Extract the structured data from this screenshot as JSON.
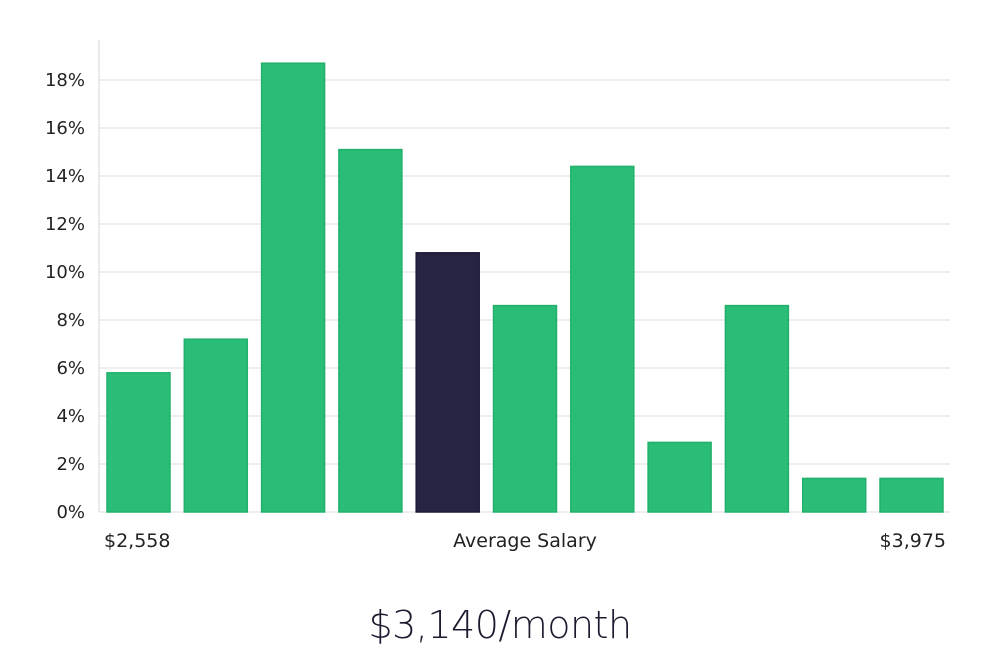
{
  "chart_data": {
    "type": "bar",
    "values": [
      5.8,
      7.2,
      18.7,
      15.1,
      10.8,
      8.6,
      14.4,
      2.9,
      8.6,
      1.4,
      1.4
    ],
    "highlight_index": 4,
    "ylim": [
      0,
      19
    ],
    "y_ticks": [
      0,
      2,
      4,
      6,
      8,
      10,
      12,
      14,
      16,
      18
    ],
    "y_tick_suffix": "%",
    "x_min_label": "$2,558",
    "x_max_label": "$3,975",
    "xlabel": "Average Salary",
    "grid": true
  },
  "headline": "$3,140/month",
  "colors": {
    "bar": "#2abd77",
    "highlight": "#272443",
    "grid": "#dddddd",
    "text": "#222222"
  }
}
